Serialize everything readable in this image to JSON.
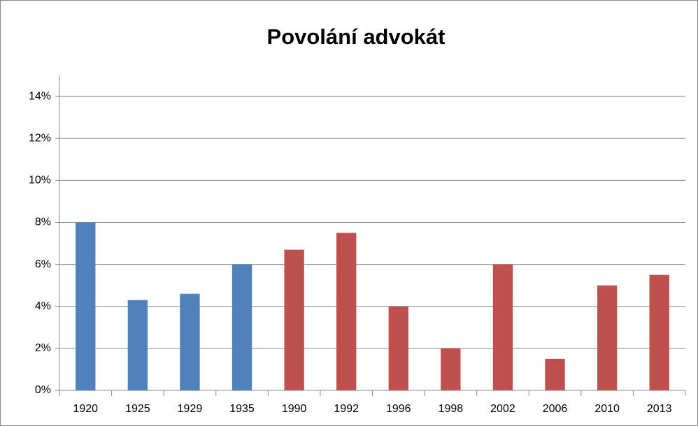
{
  "chart_data": {
    "type": "bar",
    "title": "Povolání advokát",
    "categories": [
      "1920",
      "1925",
      "1929",
      "1935",
      "1990",
      "1992",
      "1996",
      "1998",
      "2002",
      "2006",
      "2010",
      "2013"
    ],
    "values": [
      8,
      4.3,
      4.6,
      6,
      6.7,
      7.5,
      4,
      2,
      6,
      1.5,
      5,
      5.5
    ],
    "colors": [
      "#4f81bd",
      "#4f81bd",
      "#4f81bd",
      "#4f81bd",
      "#c0504d",
      "#c0504d",
      "#c0504d",
      "#c0504d",
      "#c0504d",
      "#c0504d",
      "#c0504d",
      "#c0504d"
    ],
    "ylim": [
      0,
      15
    ],
    "yticks": [
      {
        "value": 0,
        "label": "0%"
      },
      {
        "value": 2,
        "label": "2%"
      },
      {
        "value": 4,
        "label": "4%"
      },
      {
        "value": 6,
        "label": "6%"
      },
      {
        "value": 8,
        "label": "8%"
      },
      {
        "value": 10,
        "label": "10%"
      },
      {
        "value": 12,
        "label": "12%"
      },
      {
        "value": 14,
        "label": "14%"
      }
    ],
    "grid": true
  }
}
